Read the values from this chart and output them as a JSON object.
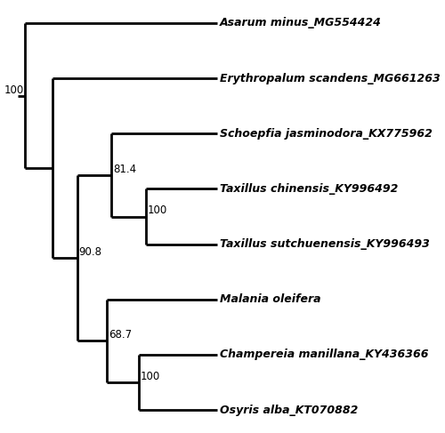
{
  "taxa": [
    "Asarum minus_MG554424",
    "Erythropalum scandens_MG661263",
    "Schoepfia jasminodora_KX775962",
    "Taxillus chinensis_KY996492",
    "Taxillus sutchuenensis_KY996493",
    "Malania oleifera",
    "Champereia manillana_KY436366",
    "Osyris alba_KT070882"
  ],
  "line_color": "#000000",
  "line_width": 2.0,
  "font_size": 9.0,
  "boot_font_size": 8.5,
  "background_color": "#ffffff"
}
